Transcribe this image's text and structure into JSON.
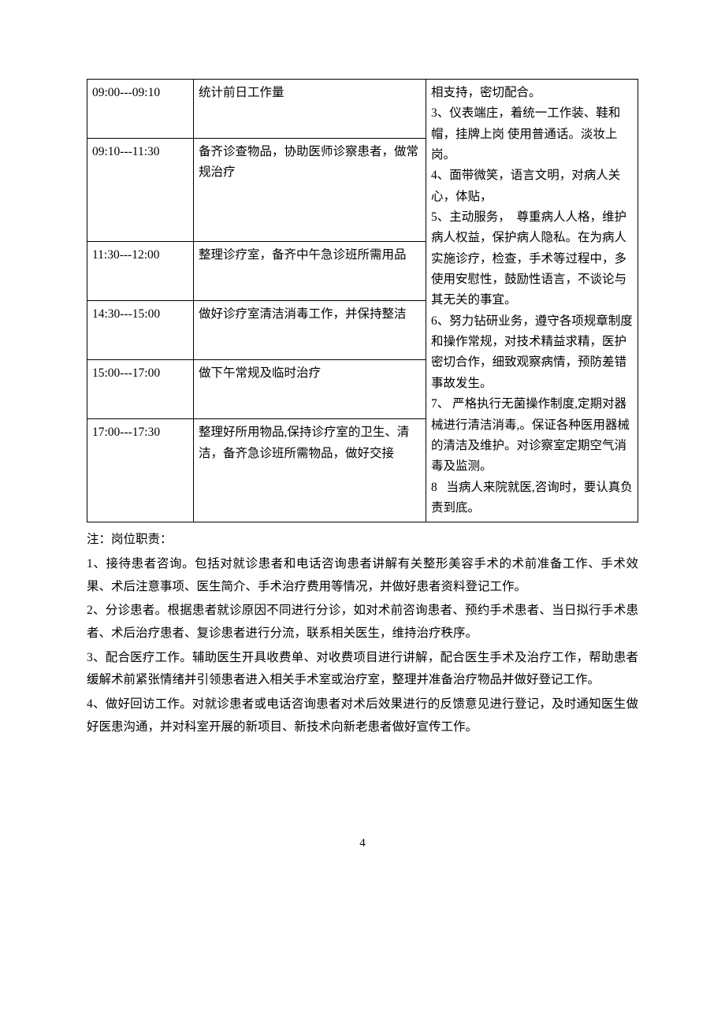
{
  "table": {
    "rows": [
      {
        "time": "09:00---09:10",
        "task": "统计前日工作量"
      },
      {
        "time": "09:10---11:30",
        "task": "备齐诊查物品，协助医师诊察患者，做常规治疗"
      },
      {
        "time": "11:30---12:00",
        "task": "整理诊疗室，备齐中午急诊班所需用品"
      },
      {
        "time": "14:30---15:00",
        "task": "做好诊疗室清洁消毒工作，并保持整洁"
      },
      {
        "time": "15:00---17:00",
        "task": "做下午常规及临时治疗"
      },
      {
        "time": "17:00---17:30",
        "task": "整理好所用物品,保持诊疗室的卫生、清洁，备齐急诊班所需物品，做好交接"
      }
    ],
    "right_col": "相支持，密切配合。\n3、仪表端庄，着统一工作装、鞋和帽，挂牌上岗 使用普通话。淡妆上岗。\n4、面带微笑，语言文明，对病人关心，体贴，\n5、主动服务，  尊重病人人格，维护病人权益，保护病人隐私。在为病人实施诊疗，检查，手术等过程中，多使用安慰性，鼓励性语言，不谈论与其无关的事宜。\n6、努力钻研业务，遵守各项规章制度和操作常规，对技术精益求精，医护密切合作，细致观察病情，预防差错事故发生。\n7、 严格执行无菌操作制度,定期对器械进行清洁消毒,。保证各种医用器械的清洁及维护。对诊察室定期空气消毒及监测。\n8   当病人来院就医,咨询时，要认真负责到底。"
  },
  "notes": {
    "title": "注：岗位职责：",
    "items": [
      "1、接待患者咨询。包括对就诊患者和电话咨询患者讲解有关整形美容手术的术前准备工作、手术效果、术后注意事项、医生简介、手术治疗费用等情况，并做好患者资料登记工作。",
      "2、分诊患者。根据患者就诊原因不同进行分诊，如对术前咨询患者、预约手术患者、当日拟行手术患者、术后治疗患者、复诊患者进行分流，联系相关医生，维持治疗秩序。",
      "3、配合医疗工作。辅助医生开具收费单、对收费项目进行讲解，配合医生手术及治疗工作，帮助患者缓解术前紧张情绪并引领患者进入相关手术室或治疗室，整理并准备治疗物品并做好登记工作。",
      "4、做好回访工作。对就诊患者或电话咨询患者对术后效果进行的反馈意见进行登记，及时通知医生做好医患沟通，并对科室开展的新项目、新技术向新老患者做好宣传工作。"
    ]
  },
  "page_number": "4"
}
